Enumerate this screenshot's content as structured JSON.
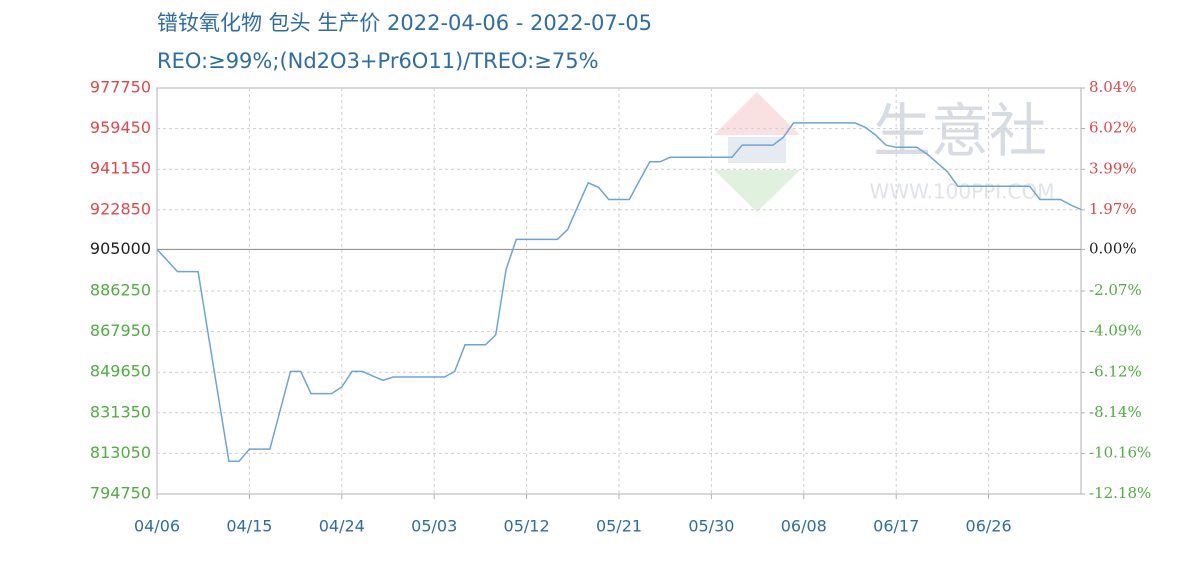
{
  "chart_data": {
    "type": "line",
    "title": "镨钕氧化物 包头 生产价 2022-04-06 - 2022-07-05",
    "subtitle": "REO:≥99%;(Nd2O3+Pr6O11)/TREO:≥75%",
    "watermark": "生意社",
    "watermark_url": "WWW.100PPI.COM",
    "categories": [
      "04/06",
      null,
      null,
      null,
      null,
      null,
      null,
      null,
      null,
      "04/15",
      null,
      null,
      null,
      null,
      null,
      null,
      null,
      null,
      "04/24",
      null,
      null,
      null,
      null,
      null,
      null,
      null,
      null,
      "05/03",
      null,
      null,
      null,
      null,
      null,
      null,
      null,
      null,
      "05/12",
      null,
      null,
      null,
      null,
      null,
      null,
      null,
      null,
      "05/21",
      null,
      null,
      null,
      null,
      null,
      null,
      null,
      null,
      "05/30",
      null,
      null,
      null,
      null,
      null,
      null,
      null,
      null,
      "06/08",
      null,
      null,
      null,
      null,
      null,
      null,
      null,
      null,
      "06/17",
      null,
      null,
      null,
      null,
      null,
      null,
      null,
      null,
      "06/26",
      null,
      null,
      null,
      null,
      null,
      null,
      null,
      null,
      null
    ],
    "values": [
      905000,
      900000,
      895000,
      895000,
      895000,
      866500,
      838000,
      809500,
      809500,
      815000,
      815000,
      815000,
      832500,
      850000,
      850000,
      840000,
      840000,
      840000,
      843000,
      850000,
      850000,
      848000,
      846000,
      847500,
      847500,
      847500,
      847500,
      847500,
      847500,
      850000,
      862000,
      862000,
      862000,
      866500,
      896000,
      909500,
      909500,
      909500,
      909500,
      909500,
      914000,
      924500,
      935000,
      933000,
      927500,
      927500,
      927500,
      936000,
      944500,
      944500,
      946500,
      946500,
      946500,
      946500,
      946500,
      946500,
      946500,
      952000,
      952000,
      952000,
      952000,
      955500,
      962000,
      962000,
      962000,
      962000,
      962000,
      962000,
      962000,
      960000,
      956500,
      952000,
      951000,
      951000,
      951000,
      948000,
      944000,
      940000,
      933500,
      933500,
      933500,
      933500,
      933500,
      933500,
      933500,
      933500,
      927500,
      927500,
      927500,
      925000,
      923000
    ],
    "color": "#6aa5d8",
    "baseline": 905000,
    "above_color": "#e04848",
    "below_color": "#4fae3f",
    "baseline_color": "#222222",
    "ylim": [
      794750,
      977750
    ],
    "yticks": [
      977750,
      959450,
      941150,
      922850,
      905000,
      886250,
      867950,
      849650,
      831350,
      813050,
      794750
    ],
    "y2lim": [
      -12.18,
      8.04
    ],
    "y2ticks": [
      {
        "value": 8.04,
        "label": "8.04%"
      },
      {
        "value": 6.02,
        "label": "6.02%"
      },
      {
        "value": 3.99,
        "label": "3.99%"
      },
      {
        "value": 1.97,
        "label": "1.97%"
      },
      {
        "value": 0,
        "label": "0.00%"
      },
      {
        "value": -2.07,
        "label": "-2.07%"
      },
      {
        "value": -4.09,
        "label": "-4.09%"
      },
      {
        "value": -6.12,
        "label": "-6.12%"
      },
      {
        "value": -8.14,
        "label": "-8.14%"
      },
      {
        "value": -10.16,
        "label": "-10.16%"
      },
      {
        "value": -12.18,
        "label": "-12.18%"
      }
    ],
    "grid": true
  }
}
